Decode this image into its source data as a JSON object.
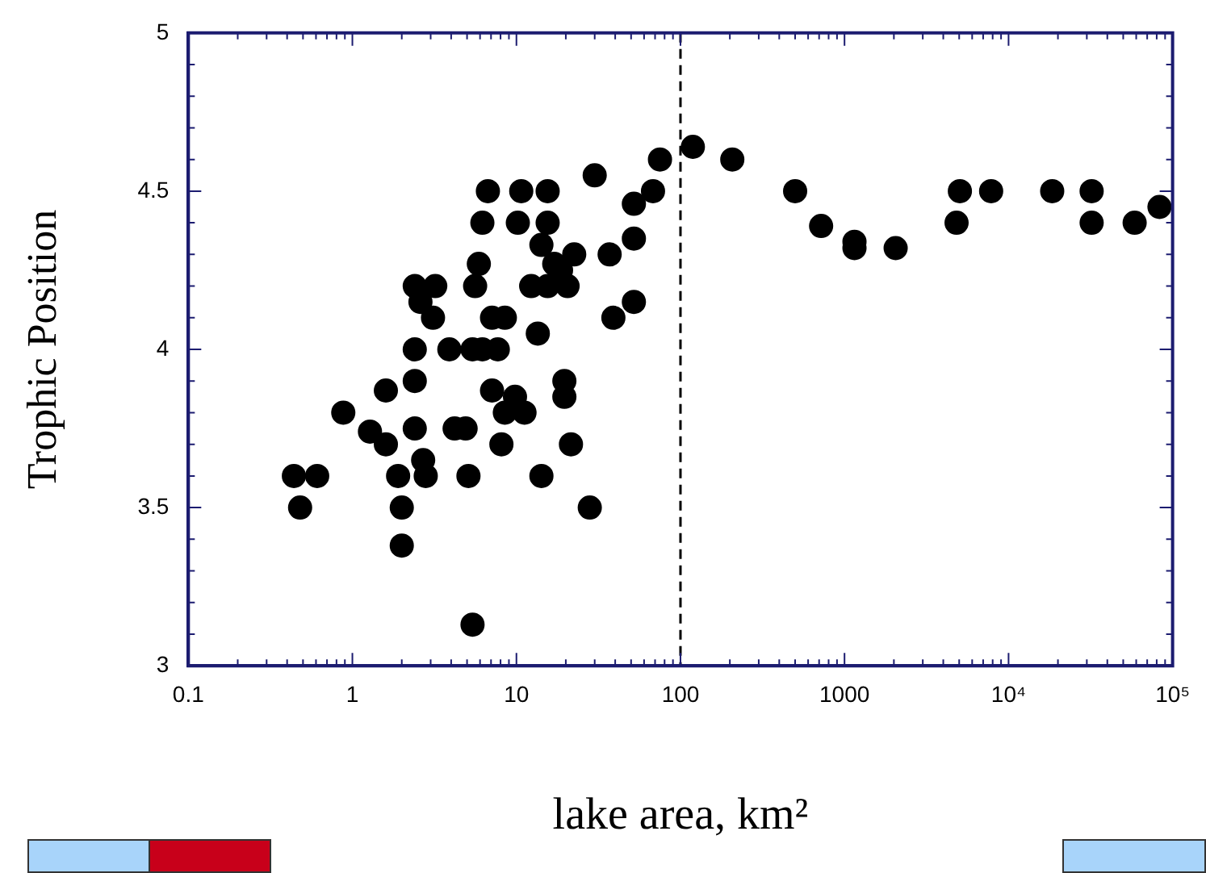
{
  "chart_data": {
    "type": "scatter",
    "xlabel": "lake area, km²",
    "ylabel": "Trophic Position",
    "log": "x",
    "marker": "circle",
    "grid": false,
    "legend": false,
    "series": [
      {
        "color": "#000000",
        "x": [
          0.44,
          0.61,
          0.48,
          0.88,
          1.28,
          1.6,
          1.6,
          1.9,
          2.0,
          2.0,
          2.4,
          2.6,
          3.2,
          3.1,
          2.4,
          2.4,
          2.4,
          2.7,
          2.8,
          3.9,
          4.2,
          4.9,
          5.4,
          5.1,
          5.4,
          6.2,
          5.6,
          7.1,
          5.9,
          6.2,
          6.7,
          8.5,
          7.7,
          7.1,
          8.1,
          8.5,
          9.8,
          11.2,
          10.2,
          10.7,
          12.3,
          13.5,
          14.2,
          15.5,
          15.5,
          14.2,
          15.5,
          17,
          19.6,
          19.6,
          21.5,
          22.5,
          20.5,
          18.7,
          28,
          30,
          37,
          39,
          52,
          52,
          52,
          68,
          75,
          119,
          207,
          500,
          720,
          1150,
          1150,
          2050,
          4820,
          5050,
          7830,
          18450,
          32100,
          32100,
          58700,
          83200
        ],
        "values": [
          3.6,
          3.6,
          3.5,
          3.8,
          3.74,
          3.7,
          3.87,
          3.6,
          3.5,
          3.38,
          4.2,
          4.15,
          4.2,
          4.1,
          4.0,
          3.9,
          3.75,
          3.65,
          3.6,
          4.0,
          3.75,
          3.75,
          4.0,
          3.6,
          3.13,
          4.0,
          4.2,
          4.1,
          4.27,
          4.4,
          4.5,
          4.1,
          4.0,
          3.87,
          3.7,
          3.8,
          3.85,
          3.8,
          4.4,
          4.5,
          4.2,
          4.05,
          3.6,
          4.5,
          4.4,
          4.33,
          4.2,
          4.27,
          3.9,
          3.85,
          3.7,
          4.3,
          4.2,
          4.25,
          3.5,
          4.55,
          4.3,
          4.1,
          4.35,
          4.46,
          4.15,
          4.5,
          4.6,
          4.64,
          4.6,
          4.5,
          4.39,
          4.34,
          4.32,
          4.32,
          4.4,
          4.5,
          4.5,
          4.5,
          4.4,
          4.5,
          4.4,
          4.45
        ]
      }
    ],
    "xlim": [
      0.1,
      100000
    ],
    "ylim": [
      3,
      5
    ],
    "xticks": [
      0.1,
      {
        "value": 0.2,
        "label": null
      },
      {
        "value": 0.3,
        "label": null
      },
      {
        "value": 0.4,
        "label": null
      },
      {
        "value": 0.5,
        "label": null
      },
      {
        "value": 0.6,
        "label": null
      },
      {
        "value": 0.7,
        "label": null
      },
      {
        "value": 0.8,
        "label": null
      },
      {
        "value": 0.9,
        "label": null
      },
      1,
      {
        "value": 2,
        "label": null
      },
      {
        "value": 3,
        "label": null
      },
      {
        "value": 4,
        "label": null
      },
      {
        "value": 5,
        "label": null
      },
      {
        "value": 6,
        "label": null
      },
      {
        "value": 7,
        "label": null
      },
      {
        "value": 8,
        "label": null
      },
      {
        "value": 9,
        "label": null
      },
      10,
      {
        "value": 20,
        "label": null
      },
      {
        "value": 30,
        "label": null
      },
      {
        "value": 40,
        "label": null
      },
      {
        "value": 50,
        "label": null
      },
      {
        "value": 60,
        "label": null
      },
      {
        "value": 70,
        "label": null
      },
      {
        "value": 80,
        "label": null
      },
      {
        "value": 90,
        "label": null
      },
      100,
      {
        "value": 200,
        "label": null
      },
      {
        "value": 300,
        "label": null
      },
      {
        "value": 400,
        "label": null
      },
      {
        "value": 500,
        "label": null
      },
      {
        "value": 600,
        "label": null
      },
      {
        "value": 700,
        "label": null
      },
      {
        "value": 800,
        "label": null
      },
      {
        "value": 900,
        "label": null
      },
      1000,
      {
        "value": 2000,
        "label": null
      },
      {
        "value": 3000,
        "label": null
      },
      {
        "value": 4000,
        "label": null
      },
      {
        "value": 5000,
        "label": null
      },
      {
        "value": 6000,
        "label": null
      },
      {
        "value": 7000,
        "label": null
      },
      {
        "value": 8000,
        "label": null
      },
      {
        "value": 9000,
        "label": null
      },
      {
        "value": 10000,
        "label": "10⁴"
      },
      {
        "value": 20000,
        "label": null
      },
      {
        "value": 30000,
        "label": null
      },
      {
        "value": 40000,
        "label": null
      },
      {
        "value": 50000,
        "label": null
      },
      {
        "value": 60000,
        "label": null
      },
      {
        "value": 70000,
        "label": null
      },
      {
        "value": 80000,
        "label": null
      },
      {
        "value": 90000,
        "label": null
      },
      {
        "value": 100000,
        "label": "10⁵"
      }
    ],
    "yticks": [
      3,
      {
        "value": 3.1,
        "label": null
      },
      {
        "value": 3.2,
        "label": null
      },
      {
        "value": 3.3,
        "label": null
      },
      {
        "value": 3.4,
        "label": null
      },
      3.5,
      {
        "value": 3.6,
        "label": null
      },
      {
        "value": 3.7,
        "label": null
      },
      {
        "value": 3.8,
        "label": null
      },
      {
        "value": 3.9,
        "label": null
      },
      4,
      {
        "value": 4.1,
        "label": null
      },
      {
        "value": 4.2,
        "label": null
      },
      {
        "value": 4.3,
        "label": null
      },
      {
        "value": 4.4,
        "label": null
      },
      4.5,
      {
        "value": 4.6,
        "label": null
      },
      {
        "value": 4.7,
        "label": null
      },
      {
        "value": 4.8,
        "label": null
      },
      {
        "value": 4.9,
        "label": null
      },
      5
    ],
    "ref_lines": [
      {
        "axis": "x",
        "value": 100,
        "color": "#000000",
        "line_style": "dashed"
      }
    ]
  }
}
